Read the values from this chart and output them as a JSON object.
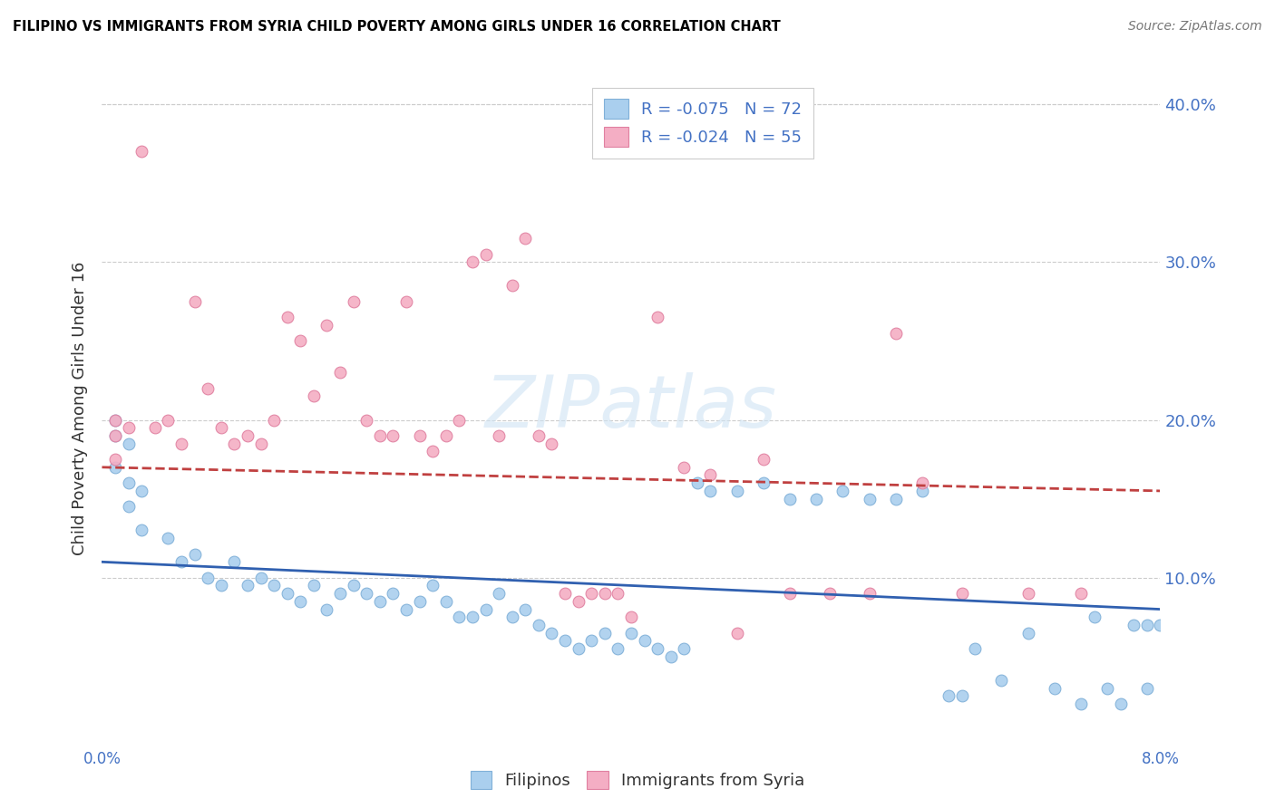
{
  "title": "FILIPINO VS IMMIGRANTS FROM SYRIA CHILD POVERTY AMONG GIRLS UNDER 16 CORRELATION CHART",
  "source": "Source: ZipAtlas.com",
  "ylabel": "Child Poverty Among Girls Under 16",
  "y_ticks": [
    0.0,
    0.1,
    0.2,
    0.3,
    0.4
  ],
  "y_tick_labels": [
    "",
    "10.0%",
    "20.0%",
    "30.0%",
    "40.0%"
  ],
  "xlim": [
    0.0,
    0.08
  ],
  "ylim": [
    -0.005,
    0.42
  ],
  "filipinos_color": "#aacfee",
  "syria_color": "#f4aec4",
  "filipinos_edge": "#80b0d8",
  "syria_edge": "#e080a0",
  "filipinos_R": -0.075,
  "filipinos_N": 72,
  "syria_R": -0.024,
  "syria_N": 55,
  "trendline_filipinos_color": "#3060b0",
  "trendline_syria_color": "#c04040",
  "watermark": "ZIPatlas",
  "filipinos_x": [
    0.001,
    0.001,
    0.001,
    0.002,
    0.002,
    0.002,
    0.003,
    0.003,
    0.005,
    0.006,
    0.007,
    0.008,
    0.009,
    0.01,
    0.011,
    0.012,
    0.013,
    0.014,
    0.015,
    0.016,
    0.017,
    0.018,
    0.019,
    0.02,
    0.021,
    0.022,
    0.023,
    0.024,
    0.025,
    0.026,
    0.027,
    0.028,
    0.029,
    0.03,
    0.031,
    0.032,
    0.033,
    0.034,
    0.035,
    0.036,
    0.037,
    0.038,
    0.039,
    0.04,
    0.041,
    0.042,
    0.043,
    0.044,
    0.045,
    0.046,
    0.048,
    0.05,
    0.052,
    0.054,
    0.056,
    0.058,
    0.06,
    0.062,
    0.064,
    0.065,
    0.066,
    0.068,
    0.07,
    0.072,
    0.074,
    0.075,
    0.076,
    0.077,
    0.078,
    0.079,
    0.079,
    0.08
  ],
  "filipinos_y": [
    0.19,
    0.2,
    0.17,
    0.185,
    0.16,
    0.145,
    0.155,
    0.13,
    0.125,
    0.11,
    0.115,
    0.1,
    0.095,
    0.11,
    0.095,
    0.1,
    0.095,
    0.09,
    0.085,
    0.095,
    0.08,
    0.09,
    0.095,
    0.09,
    0.085,
    0.09,
    0.08,
    0.085,
    0.095,
    0.085,
    0.075,
    0.075,
    0.08,
    0.09,
    0.075,
    0.08,
    0.07,
    0.065,
    0.06,
    0.055,
    0.06,
    0.065,
    0.055,
    0.065,
    0.06,
    0.055,
    0.05,
    0.055,
    0.16,
    0.155,
    0.155,
    0.16,
    0.15,
    0.15,
    0.155,
    0.15,
    0.15,
    0.155,
    0.025,
    0.025,
    0.055,
    0.035,
    0.065,
    0.03,
    0.02,
    0.075,
    0.03,
    0.02,
    0.07,
    0.07,
    0.03,
    0.07
  ],
  "syria_x": [
    0.001,
    0.001,
    0.001,
    0.002,
    0.003,
    0.004,
    0.005,
    0.006,
    0.007,
    0.008,
    0.009,
    0.01,
    0.011,
    0.012,
    0.013,
    0.014,
    0.015,
    0.016,
    0.017,
    0.018,
    0.019,
    0.02,
    0.021,
    0.022,
    0.023,
    0.024,
    0.025,
    0.026,
    0.027,
    0.028,
    0.029,
    0.03,
    0.031,
    0.032,
    0.033,
    0.034,
    0.035,
    0.036,
    0.037,
    0.038,
    0.039,
    0.04,
    0.042,
    0.044,
    0.046,
    0.048,
    0.05,
    0.052,
    0.055,
    0.058,
    0.06,
    0.062,
    0.065,
    0.07,
    0.074
  ],
  "syria_y": [
    0.19,
    0.2,
    0.175,
    0.195,
    0.37,
    0.195,
    0.2,
    0.185,
    0.275,
    0.22,
    0.195,
    0.185,
    0.19,
    0.185,
    0.2,
    0.265,
    0.25,
    0.215,
    0.26,
    0.23,
    0.275,
    0.2,
    0.19,
    0.19,
    0.275,
    0.19,
    0.18,
    0.19,
    0.2,
    0.3,
    0.305,
    0.19,
    0.285,
    0.315,
    0.19,
    0.185,
    0.09,
    0.085,
    0.09,
    0.09,
    0.09,
    0.075,
    0.265,
    0.17,
    0.165,
    0.065,
    0.175,
    0.09,
    0.09,
    0.09,
    0.255,
    0.16,
    0.09,
    0.09,
    0.09
  ],
  "background_color": "#ffffff",
  "grid_color": "#cccccc",
  "axis_label_color": "#4472c4",
  "title_color": "#000000"
}
